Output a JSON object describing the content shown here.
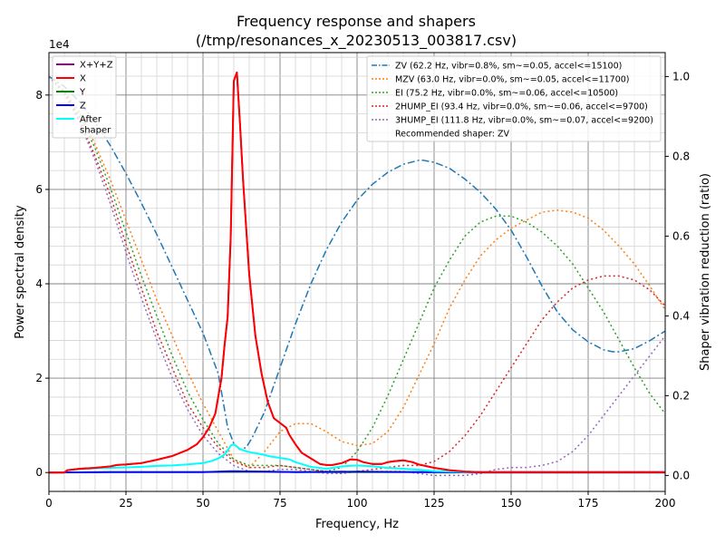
{
  "chart_data": {
    "type": "line",
    "title": [
      "Frequency response and shapers",
      "(/tmp/resonances_x_20230513_003817.csv)"
    ],
    "xlabel": "Frequency, Hz",
    "ylabel": "Power spectral density",
    "y2label": "Shaper vibration reduction (ratio)",
    "y_offset_label": "1e4",
    "xlim": [
      0,
      200
    ],
    "ylim": [
      -0.4,
      8.9
    ],
    "y2lim": [
      -0.04,
      1.06
    ],
    "x_ticks": [
      "0",
      "25",
      "50",
      "75",
      "100",
      "125",
      "150",
      "175",
      "200"
    ],
    "y_ticks": [
      "0",
      "2",
      "4",
      "6",
      "8"
    ],
    "y2_ticks": [
      "0.0",
      "0.2",
      "0.4",
      "0.6",
      "0.8",
      "1.0"
    ],
    "grid": true,
    "legend_left": {
      "position": "top-left",
      "entries": [
        {
          "label": "X+Y+Z",
          "color": "#800080"
        },
        {
          "label": "X",
          "color": "#ff0000"
        },
        {
          "label": "Y",
          "color": "#008000"
        },
        {
          "label": "Z",
          "color": "#0000ff"
        },
        {
          "label": "After\nshaper",
          "color": "#00ffff"
        }
      ]
    },
    "legend_right": {
      "position": "top-right",
      "entries": [
        {
          "label": "ZV (62.2 Hz, vibr=0.8%, sm~=0.05, accel<=15100)",
          "color": "#1f77b4",
          "style": "dashdot"
        },
        {
          "label": "MZV (63.0 Hz, vibr=0.0%, sm~=0.05, accel<=11700)",
          "color": "#ff7f0e",
          "style": "dotted"
        },
        {
          "label": "EI (75.2 Hz, vibr=0.0%, sm~=0.06, accel<=10500)",
          "color": "#2ca02c",
          "style": "dotted"
        },
        {
          "label": "2HUMP_EI (93.4 Hz, vibr=0.0%, sm~=0.06, accel<=9700)",
          "color": "#d62728",
          "style": "dotted"
        },
        {
          "label": "3HUMP_EI (111.8 Hz, vibr=0.0%, sm~=0.07, accel<=9200)",
          "color": "#9467bd",
          "style": "dotted"
        },
        {
          "label": "Recommended shaper: ZV",
          "color": "",
          "style": "none"
        }
      ]
    },
    "psd_series": [
      {
        "name": "X+Y+Z",
        "color": "#800080",
        "x": [
          0,
          5,
          6,
          10,
          15,
          20,
          22,
          25,
          30,
          35,
          40,
          45,
          48,
          50,
          52,
          54,
          56,
          57,
          58,
          59,
          60,
          61,
          62,
          63,
          65,
          67,
          69,
          71,
          73,
          75,
          77,
          78,
          80,
          82,
          85,
          88,
          90,
          92,
          95,
          98,
          100,
          102,
          105,
          108,
          110,
          112,
          115,
          118,
          120,
          125,
          130,
          135,
          140,
          150,
          160,
          170,
          180,
          190,
          200
        ],
        "y": [
          0,
          0,
          0.05,
          0.08,
          0.1,
          0.13,
          0.16,
          0.17,
          0.2,
          0.27,
          0.35,
          0.48,
          0.6,
          0.75,
          0.95,
          1.25,
          2.0,
          2.7,
          3.3,
          5.0,
          8.3,
          8.48,
          7.4,
          6.2,
          4.2,
          2.9,
          2.1,
          1.5,
          1.15,
          1.05,
          0.95,
          0.8,
          0.6,
          0.42,
          0.3,
          0.18,
          0.16,
          0.16,
          0.2,
          0.28,
          0.27,
          0.22,
          0.18,
          0.18,
          0.22,
          0.24,
          0.26,
          0.22,
          0.17,
          0.1,
          0.05,
          0.02,
          0.01,
          0.01,
          0.01,
          0.01,
          0.01,
          0.01,
          0.01
        ]
      },
      {
        "name": "X",
        "color": "#ff0000",
        "x": [
          0,
          5,
          6,
          10,
          15,
          20,
          22,
          25,
          30,
          35,
          40,
          45,
          48,
          50,
          52,
          54,
          56,
          57,
          58,
          59,
          60,
          61,
          62,
          63,
          65,
          67,
          69,
          71,
          73,
          75,
          77,
          78,
          80,
          82,
          85,
          88,
          90,
          92,
          95,
          98,
          100,
          102,
          105,
          108,
          110,
          112,
          115,
          118,
          120,
          125,
          130,
          135,
          140,
          150,
          160,
          170,
          180,
          190,
          200
        ],
        "y": [
          0,
          0,
          0.05,
          0.08,
          0.1,
          0.13,
          0.16,
          0.17,
          0.2,
          0.27,
          0.35,
          0.48,
          0.6,
          0.75,
          0.95,
          1.25,
          2.0,
          2.7,
          3.3,
          5.0,
          8.3,
          8.48,
          7.4,
          6.2,
          4.2,
          2.9,
          2.1,
          1.5,
          1.15,
          1.05,
          0.95,
          0.8,
          0.6,
          0.42,
          0.3,
          0.18,
          0.16,
          0.16,
          0.2,
          0.28,
          0.27,
          0.22,
          0.18,
          0.18,
          0.22,
          0.24,
          0.26,
          0.22,
          0.17,
          0.1,
          0.05,
          0.02,
          0.01,
          0.01,
          0.01,
          0.01,
          0.01,
          0.01,
          0.01
        ]
      },
      {
        "name": "Y",
        "color": "#008000",
        "x": [
          0,
          20,
          50,
          60,
          70,
          80,
          100,
          120,
          140,
          200
        ],
        "y": [
          0,
          0.01,
          0.01,
          0.02,
          0.02,
          0.01,
          0.01,
          0.01,
          0.0,
          0.0
        ]
      },
      {
        "name": "Z",
        "color": "#0000ff",
        "x": [
          0,
          20,
          50,
          60,
          70,
          80,
          100,
          120,
          140,
          200
        ],
        "y": [
          0,
          0.01,
          0.01,
          0.03,
          0.02,
          0.01,
          0.02,
          0.01,
          0.0,
          0.0
        ]
      },
      {
        "name": "After\nshaper",
        "color": "#00ffff",
        "x": [
          0,
          5,
          6,
          10,
          15,
          20,
          25,
          30,
          35,
          40,
          45,
          50,
          53,
          55,
          57,
          58,
          59,
          60,
          62,
          64,
          66,
          68,
          70,
          72,
          74,
          76,
          78,
          80,
          85,
          90,
          95,
          100,
          105,
          110,
          115,
          120,
          125,
          130,
          135,
          140,
          150,
          160,
          170,
          180,
          190,
          200
        ],
        "y": [
          0,
          0,
          0.05,
          0.07,
          0.09,
          0.1,
          0.11,
          0.12,
          0.14,
          0.15,
          0.17,
          0.2,
          0.25,
          0.3,
          0.38,
          0.47,
          0.57,
          0.6,
          0.5,
          0.45,
          0.42,
          0.4,
          0.37,
          0.34,
          0.32,
          0.3,
          0.28,
          0.22,
          0.12,
          0.08,
          0.13,
          0.15,
          0.13,
          0.1,
          0.08,
          0.06,
          0.03,
          0.02,
          0.01,
          0.01,
          0.01,
          0.01,
          0.01,
          0.01,
          0.01,
          0.01
        ]
      }
    ],
    "shaper_series": [
      {
        "name": "ZV (62.2 Hz, vibr=0.8%, sm~=0.05, accel<=15100)",
        "color": "#1f77b4",
        "dash": "8,3,2,3",
        "x": [
          0,
          5,
          10,
          15,
          20,
          25,
          30,
          35,
          40,
          45,
          50,
          55,
          58,
          60,
          62,
          64,
          66,
          70,
          75,
          80,
          85,
          90,
          95,
          100,
          105,
          110,
          115,
          120,
          121.5,
          125,
          130,
          135,
          140,
          145,
          150,
          155,
          160,
          165,
          170,
          175,
          180,
          183,
          185,
          190,
          195,
          200
        ],
        "y": [
          1.0,
          0.975,
          0.936,
          0.886,
          0.826,
          0.757,
          0.683,
          0.604,
          0.522,
          0.439,
          0.357,
          0.254,
          0.12,
          0.08,
          0.065,
          0.07,
          0.095,
          0.16,
          0.27,
          0.38,
          0.48,
          0.565,
          0.635,
          0.69,
          0.73,
          0.76,
          0.78,
          0.79,
          0.79,
          0.785,
          0.77,
          0.743,
          0.71,
          0.668,
          0.615,
          0.548,
          0.475,
          0.41,
          0.365,
          0.335,
          0.315,
          0.31,
          0.31,
          0.318,
          0.338,
          0.362
        ]
      },
      {
        "name": "MZV (63.0 Hz, vibr=0.0%, sm~=0.05, accel<=11700)",
        "color": "#ff7f0e",
        "dash": "2,3",
        "x": [
          0,
          5,
          10,
          15,
          20,
          25,
          30,
          35,
          40,
          45,
          50,
          55,
          60,
          65,
          70,
          75,
          80,
          85,
          90,
          95,
          100,
          105,
          110,
          115,
          120,
          125,
          130,
          135,
          140,
          145,
          150,
          155,
          160,
          165,
          170,
          175,
          180,
          185,
          190,
          195,
          200
        ],
        "y": [
          1.0,
          0.965,
          0.91,
          0.83,
          0.74,
          0.64,
          0.54,
          0.44,
          0.35,
          0.26,
          0.18,
          0.11,
          0.04,
          0.02,
          0.06,
          0.11,
          0.13,
          0.13,
          0.11,
          0.085,
          0.075,
          0.08,
          0.11,
          0.17,
          0.25,
          0.33,
          0.42,
          0.49,
          0.55,
          0.59,
          0.62,
          0.64,
          0.66,
          0.665,
          0.66,
          0.645,
          0.615,
          0.575,
          0.53,
          0.475,
          0.415
        ]
      },
      {
        "name": "EI (75.2 Hz, vibr=0.0%, sm~=0.06, accel<=10500)",
        "color": "#2ca02c",
        "dash": "2,3",
        "x": [
          0,
          5,
          10,
          15,
          20,
          25,
          30,
          35,
          40,
          45,
          50,
          55,
          60,
          65,
          70,
          75,
          80,
          85,
          90,
          95,
          100,
          105,
          110,
          115,
          120,
          125,
          130,
          135,
          140,
          145,
          150,
          155,
          160,
          165,
          170,
          175,
          180,
          185,
          190,
          195,
          200
        ],
        "y": [
          1.0,
          0.96,
          0.9,
          0.82,
          0.72,
          0.61,
          0.5,
          0.4,
          0.3,
          0.21,
          0.14,
          0.08,
          0.04,
          0.025,
          0.025,
          0.025,
          0.02,
          0.015,
          0.01,
          0.02,
          0.06,
          0.12,
          0.2,
          0.29,
          0.38,
          0.47,
          0.54,
          0.6,
          0.635,
          0.65,
          0.65,
          0.635,
          0.61,
          0.575,
          0.53,
          0.47,
          0.41,
          0.34,
          0.27,
          0.205,
          0.155
        ]
      },
      {
        "name": "2HUMP_EI (93.4 Hz, vibr=0.0%, sm~=0.06, accel<=9700)",
        "color": "#d62728",
        "dash": "2,3",
        "x": [
          0,
          5,
          10,
          15,
          20,
          25,
          30,
          35,
          40,
          45,
          50,
          55,
          60,
          65,
          70,
          75,
          80,
          85,
          90,
          95,
          100,
          105,
          110,
          115,
          120,
          125,
          130,
          135,
          140,
          145,
          150,
          155,
          160,
          165,
          170,
          175,
          180,
          185,
          190,
          195,
          200
        ],
        "y": [
          1.0,
          0.96,
          0.89,
          0.8,
          0.7,
          0.58,
          0.47,
          0.36,
          0.27,
          0.18,
          0.12,
          0.07,
          0.035,
          0.02,
          0.02,
          0.025,
          0.02,
          0.015,
          0.01,
          0.005,
          0.01,
          0.015,
          0.02,
          0.025,
          0.025,
          0.035,
          0.06,
          0.1,
          0.15,
          0.21,
          0.27,
          0.33,
          0.39,
          0.435,
          0.47,
          0.49,
          0.5,
          0.5,
          0.49,
          0.465,
          0.425
        ]
      },
      {
        "name": "3HUMP_EI (111.8 Hz, vibr=0.0%, sm~=0.07, accel<=9200)",
        "color": "#9467bd",
        "dash": "2,3",
        "x": [
          0,
          5,
          10,
          15,
          20,
          25,
          30,
          35,
          40,
          45,
          50,
          55,
          60,
          65,
          70,
          75,
          80,
          85,
          90,
          95,
          100,
          105,
          110,
          115,
          120,
          125,
          130,
          135,
          140,
          145,
          150,
          155,
          160,
          165,
          170,
          175,
          180,
          185,
          190,
          195,
          200
        ],
        "y": [
          1.0,
          0.955,
          0.885,
          0.79,
          0.68,
          0.56,
          0.445,
          0.34,
          0.245,
          0.165,
          0.1,
          0.055,
          0.025,
          0.01,
          0.01,
          0.015,
          0.015,
          0.01,
          0.005,
          0.005,
          0.01,
          0.01,
          0.01,
          0.01,
          0.005,
          0.0,
          0.0,
          0.0,
          0.005,
          0.015,
          0.02,
          0.02,
          0.025,
          0.035,
          0.06,
          0.1,
          0.15,
          0.2,
          0.25,
          0.3,
          0.35
        ]
      }
    ]
  }
}
